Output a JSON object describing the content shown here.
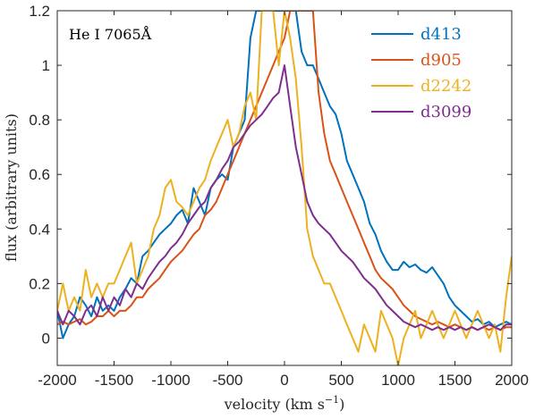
{
  "chart_data": {
    "type": "line",
    "annotation": "He I 7065Å",
    "xlabel": "velocity (km s",
    "xlabel_sup": "−1",
    "xlabel_close": ")",
    "ylabel": "flux (arbitrary units)",
    "xlim": [
      -2000,
      2000
    ],
    "ylim": [
      -0.1,
      1.2
    ],
    "xticks": [
      -2000,
      -1500,
      -1000,
      -500,
      0,
      500,
      1000,
      1500,
      2000
    ],
    "yticks": [
      0,
      0.2,
      0.4,
      0.6,
      0.8,
      1,
      1.2
    ],
    "ytick_labels": [
      "0",
      "0.2",
      "0.4",
      "0.6",
      "0.8",
      "1",
      "1.2"
    ],
    "grid": false,
    "legend_position": "top-right",
    "series": [
      {
        "name": "d413",
        "color": "#0072BD",
        "x": [
          -2000,
          -1950,
          -1900,
          -1850,
          -1800,
          -1750,
          -1700,
          -1650,
          -1600,
          -1550,
          -1500,
          -1450,
          -1400,
          -1350,
          -1300,
          -1250,
          -1200,
          -1150,
          -1100,
          -1050,
          -1000,
          -950,
          -900,
          -850,
          -800,
          -750,
          -700,
          -650,
          -600,
          -550,
          -500,
          -450,
          -400,
          -350,
          -300,
          -250,
          -200,
          -150,
          -100,
          -50,
          0,
          50,
          100,
          150,
          200,
          250,
          300,
          350,
          400,
          450,
          500,
          550,
          600,
          650,
          700,
          750,
          800,
          850,
          900,
          950,
          1000,
          1050,
          1100,
          1150,
          1200,
          1250,
          1300,
          1350,
          1400,
          1450,
          1500,
          1550,
          1600,
          1650,
          1700,
          1750,
          1800,
          1850,
          1900,
          1950,
          2000
        ],
        "y": [
          0.1,
          0.0,
          0.05,
          0.08,
          0.15,
          0.12,
          0.08,
          0.15,
          0.1,
          0.12,
          0.1,
          0.15,
          0.18,
          0.22,
          0.2,
          0.3,
          0.32,
          0.35,
          0.38,
          0.4,
          0.42,
          0.45,
          0.47,
          0.42,
          0.55,
          0.5,
          0.45,
          0.55,
          0.58,
          0.6,
          0.58,
          0.7,
          0.75,
          0.8,
          1.1,
          1.2,
          1.2,
          1.2,
          1.2,
          1.2,
          1.2,
          1.2,
          1.2,
          1.05,
          1.0,
          1.0,
          0.95,
          0.9,
          0.85,
          0.82,
          0.75,
          0.65,
          0.6,
          0.55,
          0.5,
          0.42,
          0.38,
          0.32,
          0.28,
          0.25,
          0.25,
          0.28,
          0.26,
          0.27,
          0.25,
          0.24,
          0.26,
          0.23,
          0.2,
          0.15,
          0.12,
          0.1,
          0.08,
          0.06,
          0.07,
          0.05,
          0.06,
          0.04,
          0.05,
          0.06,
          0.05
        ]
      },
      {
        "name": "d905",
        "color": "#D95319",
        "x": [
          -2000,
          -1950,
          -1900,
          -1850,
          -1800,
          -1750,
          -1700,
          -1650,
          -1600,
          -1550,
          -1500,
          -1450,
          -1400,
          -1350,
          -1300,
          -1250,
          -1200,
          -1150,
          -1100,
          -1050,
          -1000,
          -950,
          -900,
          -850,
          -800,
          -750,
          -700,
          -650,
          -600,
          -550,
          -500,
          -450,
          -400,
          -350,
          -300,
          -250,
          -200,
          -150,
          -100,
          -50,
          0,
          50,
          100,
          150,
          200,
          250,
          300,
          350,
          400,
          450,
          500,
          550,
          600,
          650,
          700,
          750,
          800,
          850,
          900,
          950,
          1000,
          1050,
          1100,
          1150,
          1200,
          1250,
          1300,
          1350,
          1400,
          1450,
          1500,
          1550,
          1600,
          1650,
          1700,
          1750,
          1800,
          1850,
          1900,
          1950,
          2000
        ],
        "y": [
          0.05,
          0.06,
          0.05,
          0.06,
          0.07,
          0.05,
          0.06,
          0.08,
          0.08,
          0.1,
          0.08,
          0.1,
          0.1,
          0.12,
          0.15,
          0.15,
          0.18,
          0.2,
          0.22,
          0.25,
          0.28,
          0.3,
          0.32,
          0.35,
          0.38,
          0.4,
          0.45,
          0.47,
          0.5,
          0.55,
          0.6,
          0.65,
          0.7,
          0.75,
          0.8,
          0.85,
          0.9,
          0.95,
          1.0,
          1.05,
          1.1,
          1.2,
          1.2,
          1.2,
          1.2,
          1.2,
          0.9,
          0.75,
          0.65,
          0.6,
          0.55,
          0.5,
          0.45,
          0.4,
          0.35,
          0.3,
          0.25,
          0.22,
          0.2,
          0.18,
          0.15,
          0.12,
          0.1,
          0.08,
          0.07,
          0.06,
          0.05,
          0.06,
          0.05,
          0.04,
          0.05,
          0.04,
          0.03,
          0.04,
          0.03,
          0.04,
          0.03,
          0.04,
          0.03,
          0.04,
          0.04
        ]
      },
      {
        "name": "d2242",
        "color": "#EDB120",
        "x": [
          -2000,
          -1950,
          -1900,
          -1850,
          -1800,
          -1750,
          -1700,
          -1650,
          -1600,
          -1550,
          -1500,
          -1450,
          -1400,
          -1350,
          -1300,
          -1250,
          -1200,
          -1150,
          -1100,
          -1050,
          -1000,
          -950,
          -900,
          -850,
          -800,
          -750,
          -700,
          -650,
          -600,
          -550,
          -500,
          -450,
          -400,
          -350,
          -300,
          -250,
          -200,
          -150,
          -100,
          -50,
          0,
          50,
          100,
          150,
          200,
          250,
          300,
          350,
          400,
          450,
          500,
          550,
          600,
          650,
          700,
          750,
          800,
          850,
          900,
          950,
          1000,
          1050,
          1100,
          1150,
          1200,
          1250,
          1300,
          1350,
          1400,
          1450,
          1500,
          1550,
          1600,
          1650,
          1700,
          1750,
          1800,
          1850,
          1900,
          1950,
          2000
        ],
        "y": [
          0.1,
          0.2,
          0.1,
          0.15,
          0.1,
          0.25,
          0.15,
          0.2,
          0.15,
          0.2,
          0.2,
          0.25,
          0.3,
          0.35,
          0.2,
          0.25,
          0.3,
          0.4,
          0.45,
          0.55,
          0.58,
          0.5,
          0.48,
          0.45,
          0.5,
          0.55,
          0.58,
          0.65,
          0.7,
          0.75,
          0.8,
          0.7,
          0.75,
          0.85,
          0.9,
          0.8,
          1.2,
          1.2,
          1.2,
          1.0,
          1.2,
          1.1,
          0.95,
          0.7,
          0.4,
          0.3,
          0.25,
          0.2,
          0.2,
          0.15,
          0.1,
          0.05,
          0.0,
          -0.05,
          0.05,
          0.0,
          -0.05,
          0.1,
          0.05,
          0.0,
          -0.1,
          0.0,
          0.05,
          0.1,
          0.0,
          0.05,
          0.1,
          0.05,
          0.0,
          0.05,
          0.1,
          0.05,
          0.0,
          0.05,
          0.1,
          0.05,
          0.0,
          0.05,
          -0.05,
          0.15,
          0.3
        ]
      },
      {
        "name": "d3099",
        "color": "#7E2F8E",
        "x": [
          -2000,
          -1950,
          -1900,
          -1850,
          -1800,
          -1750,
          -1700,
          -1650,
          -1600,
          -1550,
          -1500,
          -1450,
          -1400,
          -1350,
          -1300,
          -1250,
          -1200,
          -1150,
          -1100,
          -1050,
          -1000,
          -950,
          -900,
          -850,
          -800,
          -750,
          -700,
          -650,
          -600,
          -550,
          -500,
          -450,
          -400,
          -350,
          -300,
          -250,
          -200,
          -150,
          -100,
          -50,
          0,
          50,
          100,
          150,
          200,
          250,
          300,
          350,
          400,
          450,
          500,
          550,
          600,
          650,
          700,
          750,
          800,
          850,
          900,
          950,
          1000,
          1050,
          1100,
          1150,
          1200,
          1250,
          1300,
          1350,
          1400,
          1450,
          1500,
          1550,
          1600,
          1650,
          1700,
          1750,
          1800,
          1850,
          1900,
          1950,
          2000
        ],
        "y": [
          0.1,
          0.05,
          0.1,
          0.08,
          0.05,
          0.1,
          0.12,
          0.08,
          0.15,
          0.1,
          0.15,
          0.12,
          0.18,
          0.15,
          0.2,
          0.18,
          0.22,
          0.25,
          0.28,
          0.3,
          0.33,
          0.35,
          0.38,
          0.42,
          0.45,
          0.48,
          0.5,
          0.55,
          0.58,
          0.62,
          0.65,
          0.7,
          0.72,
          0.75,
          0.78,
          0.8,
          0.82,
          0.85,
          0.88,
          0.9,
          1.0,
          0.85,
          0.7,
          0.6,
          0.5,
          0.45,
          0.42,
          0.4,
          0.38,
          0.35,
          0.32,
          0.3,
          0.28,
          0.25,
          0.22,
          0.2,
          0.18,
          0.15,
          0.12,
          0.1,
          0.08,
          0.06,
          0.05,
          0.04,
          0.05,
          0.04,
          0.03,
          0.04,
          0.03,
          0.04,
          0.03,
          0.04,
          0.03,
          0.04,
          0.03,
          0.04,
          0.05,
          0.04,
          0.03,
          0.05,
          0.05
        ]
      }
    ]
  }
}
